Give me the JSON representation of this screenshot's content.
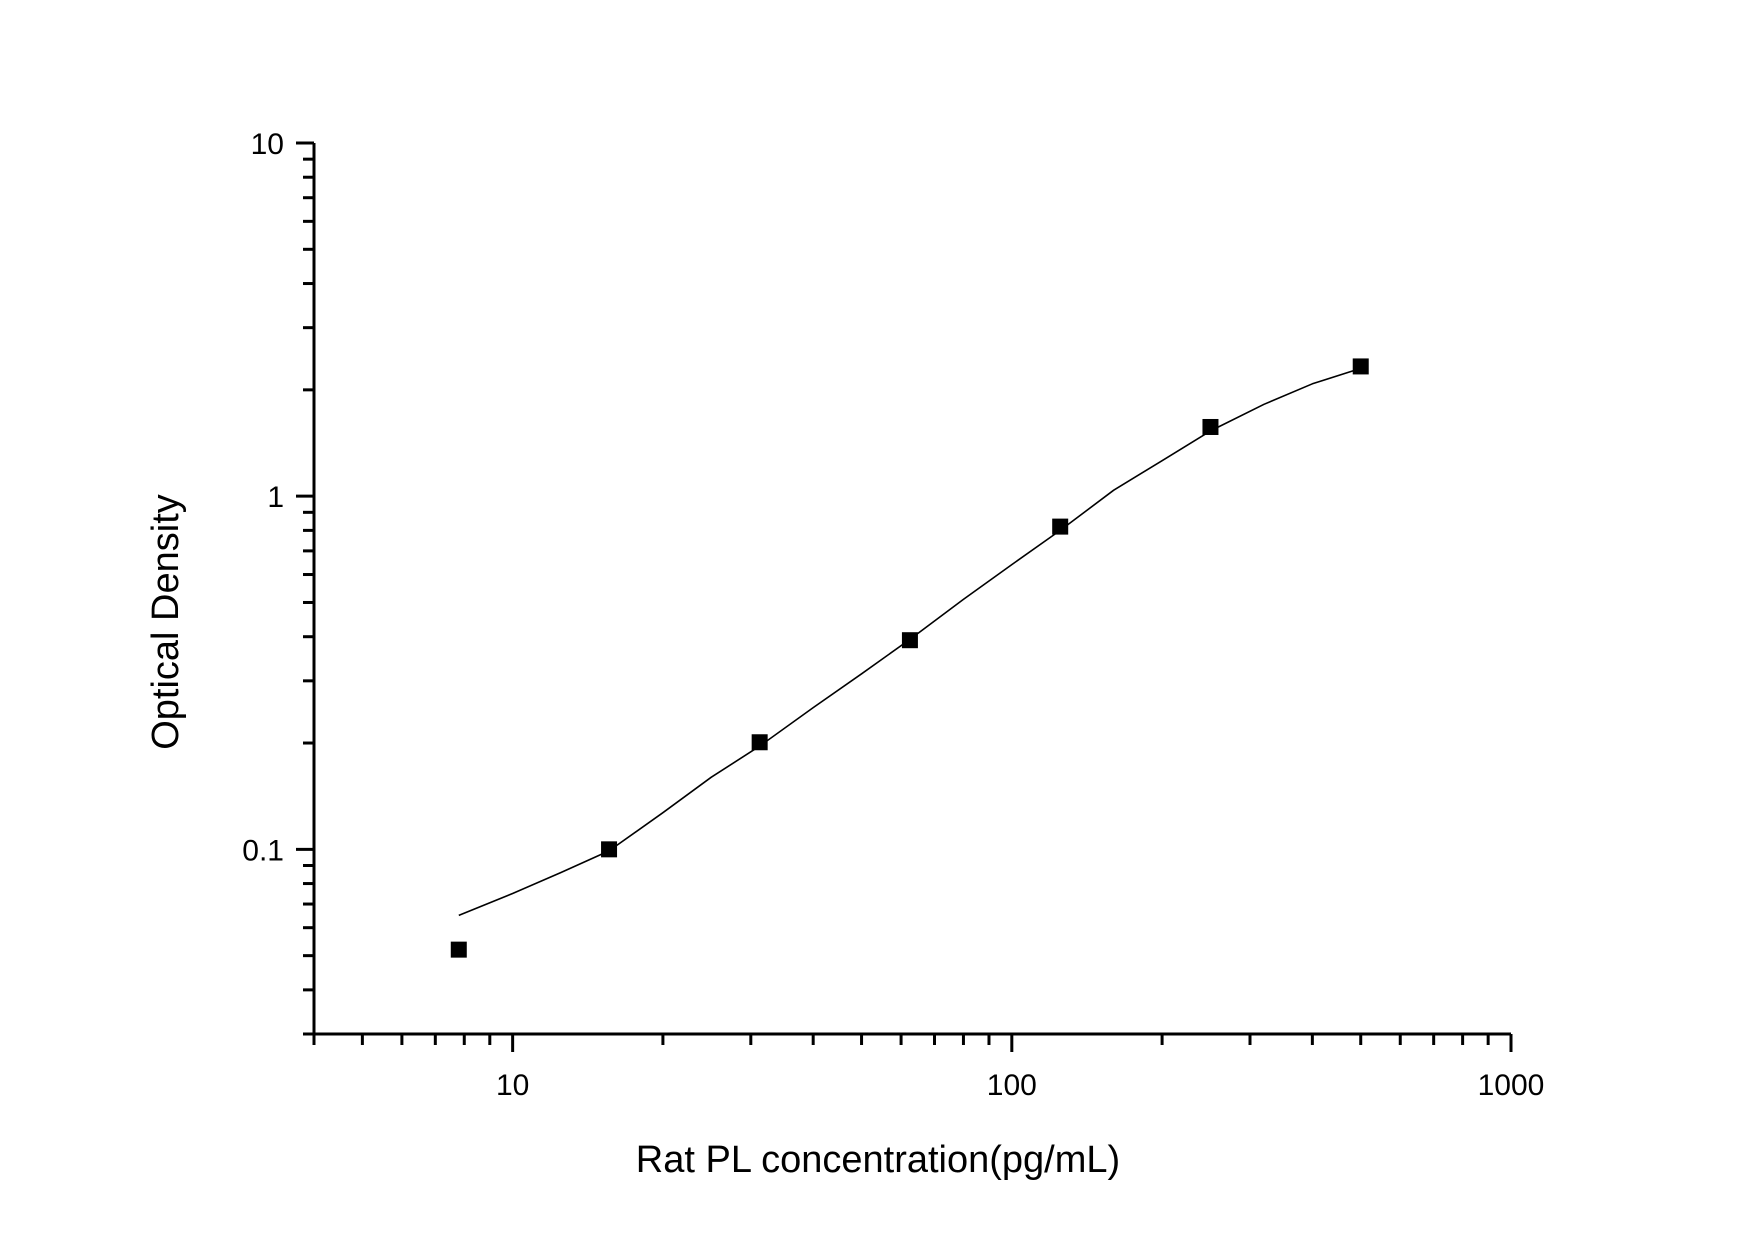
{
  "chart_data": {
    "type": "scatter",
    "title": "",
    "xlabel": "Rat PL concentration(pg/mL)",
    "ylabel": "Optical Density",
    "xscale": "log",
    "yscale": "log",
    "xlim": [
      4,
      1000
    ],
    "ylim": [
      0.03,
      10
    ],
    "grid": false,
    "legend": null,
    "x_ticks": [
      {
        "value": 10,
        "label": "10"
      },
      {
        "value": 100,
        "label": "100"
      },
      {
        "value": 1000,
        "label": "1000"
      }
    ],
    "y_ticks": [
      {
        "value": 0.1,
        "label": "0.1"
      },
      {
        "value": 1,
        "label": "1"
      },
      {
        "value": 10,
        "label": "10"
      }
    ],
    "series": [
      {
        "name": "Standard points",
        "marker": "square",
        "color": "#000000",
        "x": [
          7.8,
          15.6,
          31.25,
          62.5,
          125,
          250,
          500
        ],
        "y": [
          0.052,
          0.1,
          0.201,
          0.391,
          0.82,
          1.57,
          2.33
        ]
      },
      {
        "name": "Fitted curve",
        "style": "line",
        "color": "#000000",
        "x": [
          7.8,
          10,
          12.5,
          15.6,
          20,
          25,
          31.25,
          40,
          50,
          62.5,
          80,
          100,
          125,
          160,
          200,
          250,
          320,
          400,
          500
        ],
        "y": [
          0.065,
          0.075,
          0.086,
          0.099,
          0.127,
          0.16,
          0.196,
          0.252,
          0.314,
          0.393,
          0.51,
          0.64,
          0.8,
          1.04,
          1.26,
          1.53,
          1.82,
          2.08,
          2.3
        ]
      }
    ]
  }
}
